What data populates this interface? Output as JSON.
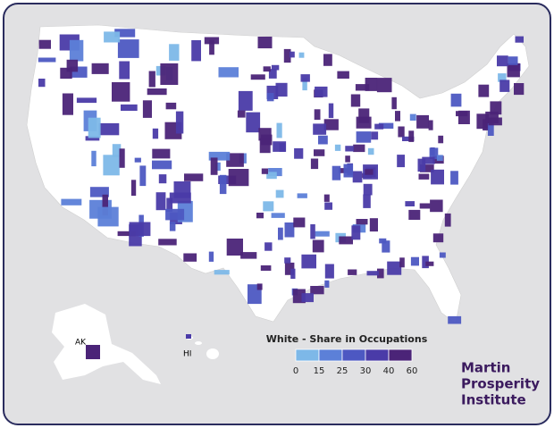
{
  "legend": {
    "title": "White - Share in Occupations",
    "ticks": [
      0,
      15,
      25,
      30,
      40,
      60
    ],
    "colors": [
      "#7db8e8",
      "#5c80d8",
      "#4d58c2",
      "#4a3ba8",
      "#4b2478"
    ]
  },
  "labels": {
    "alaska": "AK",
    "hawaii": "HI"
  },
  "brand": [
    "Martin",
    "Prosperity",
    "Institute"
  ]
}
